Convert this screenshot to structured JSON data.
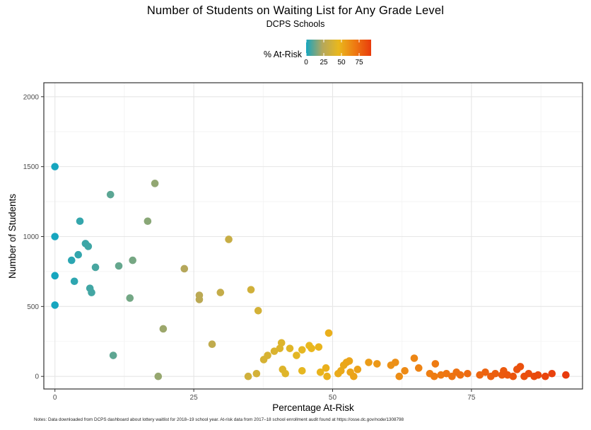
{
  "chart_data": {
    "type": "scatter",
    "title": "Number of Students on Waiting List for Any Grade Level",
    "subtitle": "DCPS Schools",
    "xlabel": "Percentage At-Risk",
    "ylabel": "Number of Students",
    "xlim": [
      -2,
      95
    ],
    "ylim": [
      -90,
      2100
    ],
    "x_ticks": [
      0,
      25,
      50,
      75
    ],
    "y_ticks": [
      0,
      500,
      1000,
      1500,
      2000
    ],
    "grid": true,
    "legend": {
      "title": "% At-Risk",
      "position": "top",
      "ticks": [
        0,
        25,
        50,
        75
      ],
      "color_range": [
        0,
        92
      ],
      "colors": [
        "#16a6bf",
        "#b4a75c",
        "#e9b81d",
        "#ee7a12",
        "#e83b0c"
      ]
    },
    "points": [
      [
        0,
        1500
      ],
      [
        0,
        1000
      ],
      [
        0,
        720
      ],
      [
        0,
        510
      ],
      [
        3,
        830
      ],
      [
        3.5,
        680
      ],
      [
        4.2,
        870
      ],
      [
        4.5,
        1110
      ],
      [
        5.5,
        950
      ],
      [
        6,
        930
      ],
      [
        6.3,
        630
      ],
      [
        6.6,
        600
      ],
      [
        7.3,
        780
      ],
      [
        10,
        1300
      ],
      [
        10.5,
        150
      ],
      [
        11.5,
        790
      ],
      [
        13.5,
        560
      ],
      [
        14,
        830
      ],
      [
        16.7,
        1110
      ],
      [
        18,
        1380
      ],
      [
        18.6,
        0
      ],
      [
        19.5,
        340
      ],
      [
        23.3,
        770
      ],
      [
        26,
        580
      ],
      [
        26,
        550
      ],
      [
        28.3,
        230
      ],
      [
        29.8,
        600
      ],
      [
        31.3,
        980
      ],
      [
        34.8,
        0
      ],
      [
        35.3,
        620
      ],
      [
        36.3,
        20
      ],
      [
        36.6,
        470
      ],
      [
        37.6,
        120
      ],
      [
        38.3,
        150
      ],
      [
        39.5,
        180
      ],
      [
        40.5,
        200
      ],
      [
        40.8,
        240
      ],
      [
        41,
        50
      ],
      [
        41.5,
        20
      ],
      [
        42.3,
        200
      ],
      [
        43.5,
        150
      ],
      [
        44.5,
        40
      ],
      [
        44.5,
        190
      ],
      [
        45.8,
        220
      ],
      [
        46.2,
        200
      ],
      [
        47.5,
        210
      ],
      [
        47.8,
        30
      ],
      [
        48.8,
        60
      ],
      [
        49.3,
        310
      ],
      [
        49,
        0
      ],
      [
        51,
        20
      ],
      [
        51.5,
        40
      ],
      [
        52,
        80
      ],
      [
        52.5,
        100
      ],
      [
        53,
        110
      ],
      [
        53.2,
        30
      ],
      [
        53.8,
        0
      ],
      [
        54.5,
        50
      ],
      [
        56.5,
        100
      ],
      [
        58,
        90
      ],
      [
        60.5,
        80
      ],
      [
        61.3,
        100
      ],
      [
        62,
        0
      ],
      [
        63,
        40
      ],
      [
        64.7,
        130
      ],
      [
        65.5,
        60
      ],
      [
        67.5,
        20
      ],
      [
        68.5,
        90
      ],
      [
        68.3,
        0
      ],
      [
        69.5,
        10
      ],
      [
        70.5,
        20
      ],
      [
        71.5,
        0
      ],
      [
        72.3,
        30
      ],
      [
        73,
        10
      ],
      [
        74.3,
        20
      ],
      [
        76.5,
        10
      ],
      [
        77.5,
        30
      ],
      [
        78.5,
        0
      ],
      [
        79.3,
        20
      ],
      [
        80.5,
        10
      ],
      [
        80.8,
        40
      ],
      [
        81.5,
        10
      ],
      [
        82.5,
        0
      ],
      [
        83.2,
        50
      ],
      [
        83.8,
        70
      ],
      [
        84.5,
        0
      ],
      [
        85.3,
        20
      ],
      [
        86.3,
        0
      ],
      [
        87,
        10
      ],
      [
        88.3,
        0
      ],
      [
        89.5,
        20
      ],
      [
        92,
        10
      ]
    ]
  },
  "notes": "Notes: Data downloaded from DCPS dashboard about lottery waitlist for 2018–19 school year. At-risk data from 2017–18 school enrollment audit found at https://osse.dc.gov/node/1308798"
}
